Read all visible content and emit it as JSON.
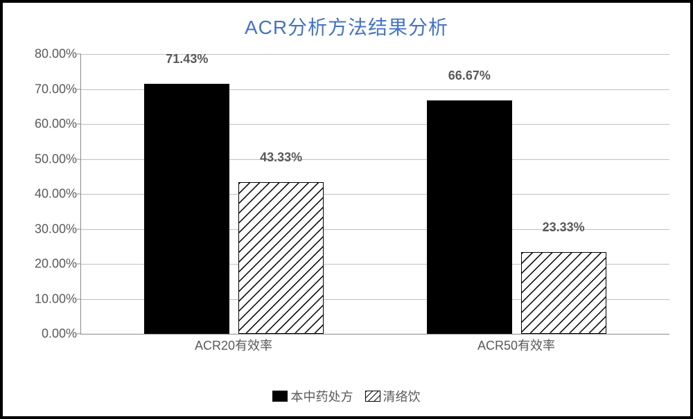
{
  "chart": {
    "type": "bar",
    "title": "ACR分析方法结果分析",
    "title_color": "#4472c4",
    "title_fontsize": 28,
    "background_color": "#ffffff",
    "grid_color": "#bfbfbf",
    "axis_color": "#888888",
    "label_color": "#595959",
    "label_fontsize": 18,
    "frame_border_color": "#000000",
    "y_axis": {
      "min": 0,
      "max": 80,
      "tick_step": 10,
      "ticks": [
        "0.00%",
        "10.00%",
        "20.00%",
        "30.00%",
        "40.00%",
        "50.00%",
        "60.00%",
        "70.00%",
        "80.00%"
      ]
    },
    "categories": [
      "ACR20有效率",
      "ACR50有效率"
    ],
    "series": [
      {
        "name": "本中药处方",
        "style": "solid",
        "color": "#000000",
        "values": [
          71.43,
          66.67
        ],
        "labels": [
          "71.43%",
          "66.67%"
        ]
      },
      {
        "name": "清络饮",
        "style": "hatched",
        "color": "#000000",
        "values": [
          43.33,
          23.33
        ],
        "labels": [
          "43.33%",
          "23.33%"
        ]
      }
    ],
    "group_positions_pct": [
      26,
      74
    ],
    "bar_width_pct": 14.5,
    "bar_gap_pct": 1.5
  }
}
